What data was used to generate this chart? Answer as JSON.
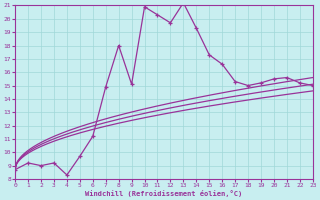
{
  "xlabel": "Windchill (Refroidissement éolien,°C)",
  "xlim": [
    0,
    23
  ],
  "ylim": [
    8,
    21
  ],
  "yticks": [
    8,
    9,
    10,
    11,
    12,
    13,
    14,
    15,
    16,
    17,
    18,
    19,
    20,
    21
  ],
  "xticks": [
    0,
    1,
    2,
    3,
    4,
    5,
    6,
    7,
    8,
    9,
    10,
    11,
    12,
    13,
    14,
    15,
    16,
    17,
    18,
    19,
    20,
    21,
    22,
    23
  ],
  "bg_color": "#c8eef0",
  "line_color": "#993399",
  "grid_color": "#a0d8d8",
  "main_series_x": [
    0,
    1,
    2,
    3,
    4,
    5,
    6,
    7,
    8,
    9,
    10,
    11,
    12,
    13,
    14,
    15,
    16,
    17,
    18,
    19,
    20,
    21,
    22,
    23
  ],
  "main_series_y": [
    8.7,
    9.2,
    9.0,
    9.2,
    8.3,
    9.7,
    11.2,
    14.9,
    18.0,
    15.1,
    20.9,
    20.3,
    19.7,
    21.2,
    19.3,
    17.3,
    16.6,
    15.3,
    15.0,
    15.2,
    15.5,
    15.6,
    15.2,
    15.0
  ],
  "ref_start_x": 0,
  "ref_start_y": 8.7,
  "ref_end_x": 23,
  "ref_end_y1": 15.6,
  "ref_end_y2": 15.1,
  "ref_end_y3": 14.6
}
